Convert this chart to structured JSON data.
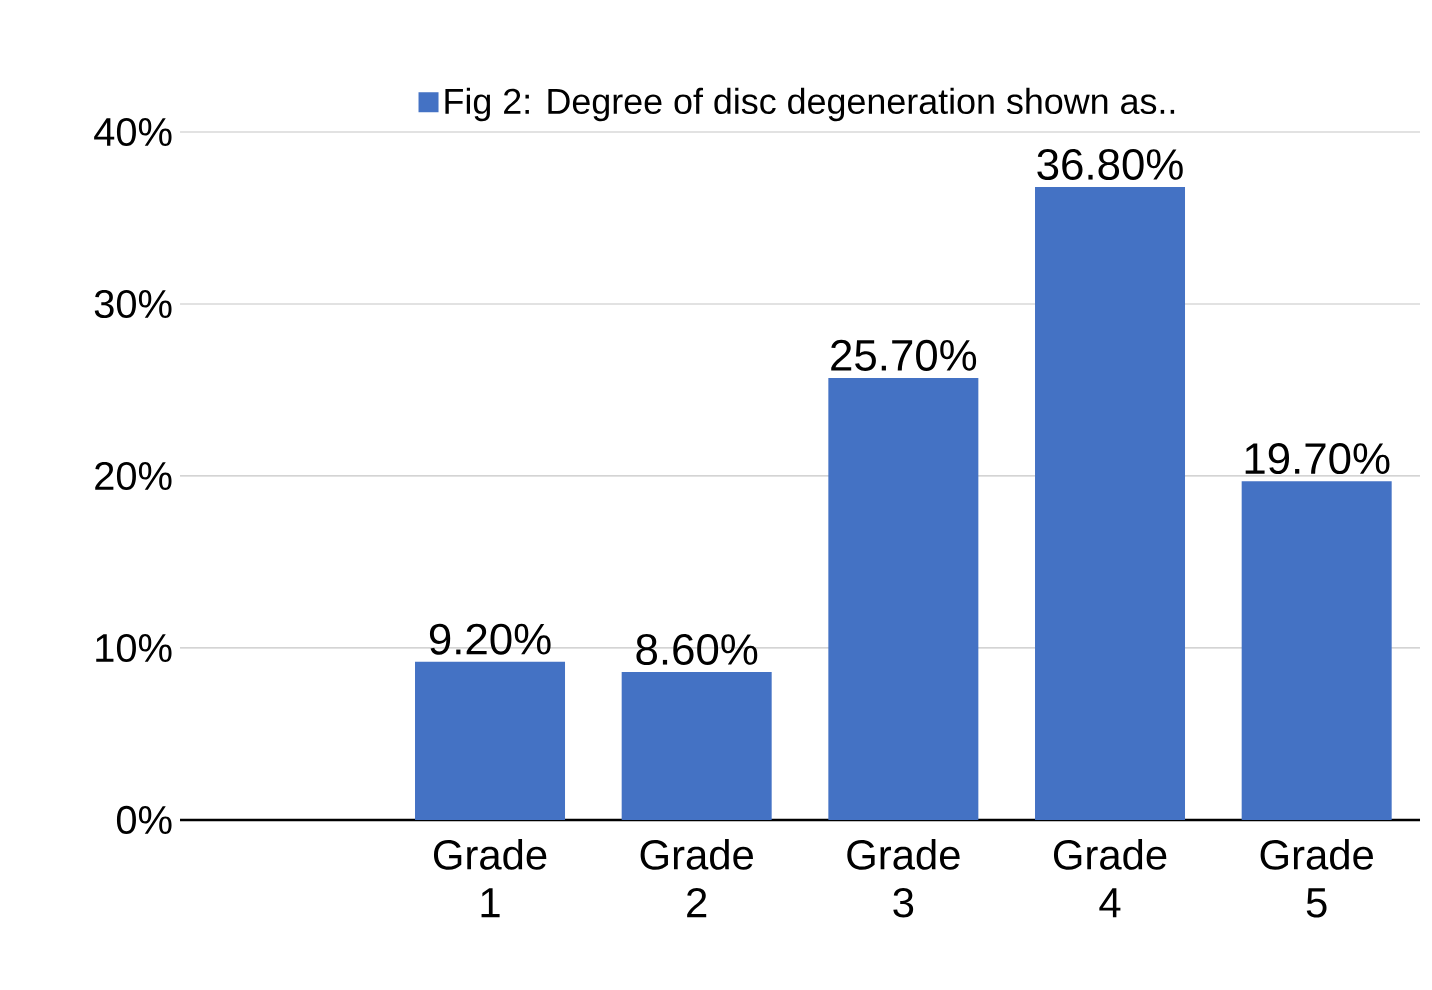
{
  "chart_data": {
    "type": "bar",
    "categories": [
      null,
      "Grade 1",
      "Grade 2",
      "Grade 3",
      "Grade 4",
      "Grade 5"
    ],
    "series": [
      {
        "name": "Fig 2: Degree of disc degeneration shown as..",
        "color": "#4472c4",
        "values": [
          null,
          9.2,
          8.6,
          25.7,
          36.8,
          19.7
        ],
        "value_labels": [
          null,
          "9.20%",
          "8.60%",
          "25.70%",
          "36.80%",
          "19.70%"
        ]
      }
    ],
    "ylim": [
      0,
      40
    ],
    "yticks": [
      {
        "value": 0,
        "label": "0%"
      },
      {
        "value": 10,
        "label": "10%"
      },
      {
        "value": 20,
        "label": "20%"
      },
      {
        "value": 30,
        "label": "30%"
      },
      {
        "value": 40,
        "label": "40%"
      }
    ],
    "grid": "y",
    "legend": "top"
  }
}
